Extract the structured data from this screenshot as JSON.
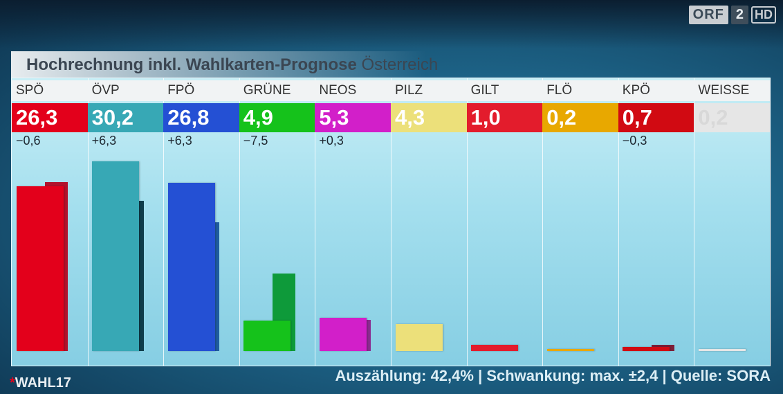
{
  "logo": {
    "orf": "ORF",
    "channel": "2",
    "hd": "HD"
  },
  "title": {
    "bold": "Hochrechnung inkl. Wahlkarten-Prognose",
    "region": "Österreich"
  },
  "chart_data": {
    "type": "bar",
    "title": "Hochrechnung inkl. Wahlkarten-Prognose Österreich",
    "ylim": [
      0,
      32
    ],
    "categories": [
      "SPÖ",
      "ÖVP",
      "FPÖ",
      "GRÜNE",
      "NEOS",
      "PILZ",
      "GILT",
      "FLÖ",
      "KPÖ",
      "WEISSE"
    ],
    "series": [
      {
        "values": [
          26.3,
          30.2,
          26.8,
          4.9,
          5.3,
          4.3,
          1.0,
          0.2,
          0.7,
          0.2
        ]
      },
      {
        "values": [
          26.9,
          23.9,
          20.5,
          12.4,
          5.0,
          null,
          null,
          null,
          1.0,
          null
        ]
      }
    ],
    "value_labels": [
      "26,3",
      "30,2",
      "26,8",
      "4,9",
      "5,3",
      "4,3",
      "1,0",
      "0,2",
      "0,7",
      "0,2"
    ],
    "changes": [
      "−0,6",
      "+6,3",
      "+6,3",
      "−7,5",
      "+0,3",
      "",
      "",
      "",
      "−0,3",
      ""
    ],
    "colors": [
      "#e3001b",
      "#37a8b5",
      "#2450d4",
      "#15c21b",
      "#d21fc9",
      "#ece07a",
      "#e31c2c",
      "#e8a800",
      "#d10a12",
      "#e6e6e6"
    ],
    "prev_colors": [
      "#b2122c",
      "#0f3d4b",
      "#1f5ca0",
      "#0e9a3a",
      "#8a2a8f",
      "",
      "",
      "",
      "#7d1f38",
      ""
    ],
    "value_text_colors": [
      "#ffffff",
      "#ffffff",
      "#ffffff",
      "#ffffff",
      "#ffffff",
      "#ffffff",
      "#ffffff",
      "#ffffff",
      "#ffffff",
      "#d8d8d8"
    ]
  },
  "footer": "Auszählung: 42,4% | Schwankung: max. ±2,4 | Quelle: SORA",
  "brand": {
    "mark": "*",
    "text": "WAHL17"
  }
}
